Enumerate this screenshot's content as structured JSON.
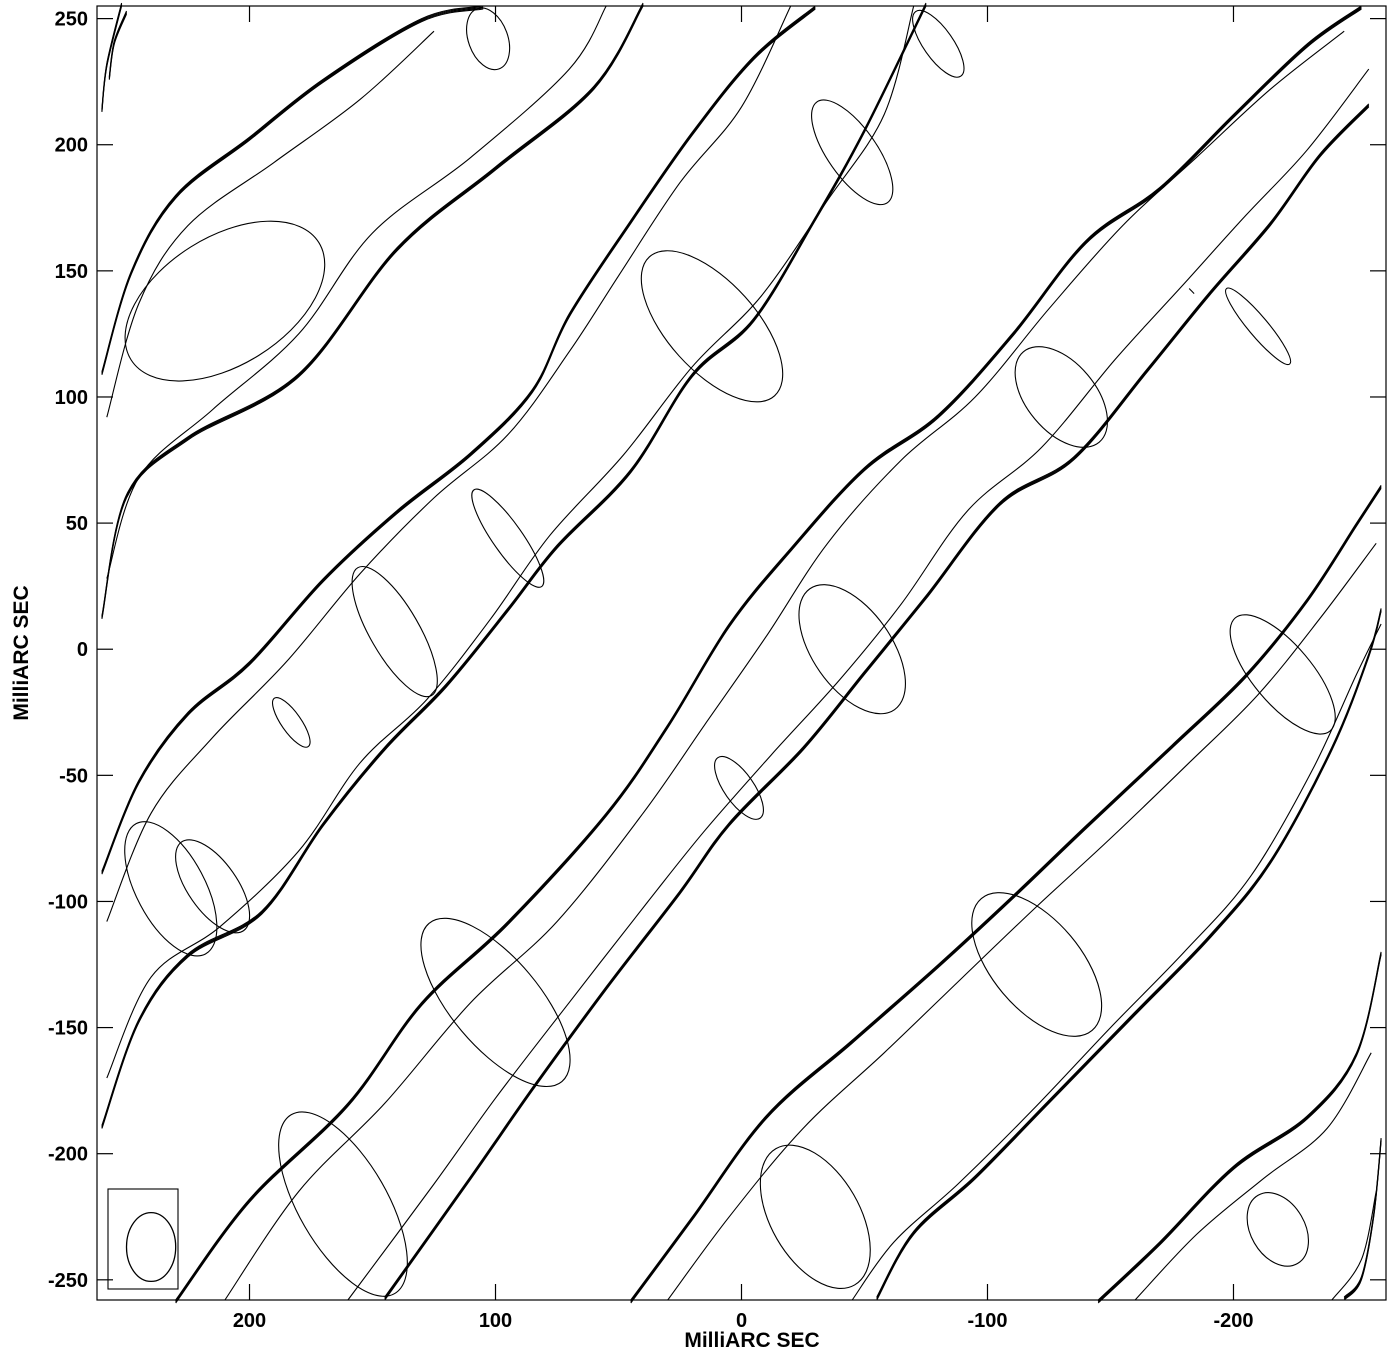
{
  "chart_data": {
    "type": "contour",
    "xlabel": "MilliARC SEC",
    "ylabel": "MilliARC SEC",
    "xlim": [
      262,
      -262
    ],
    "ylim": [
      -258,
      255
    ],
    "x_ticks": [
      {
        "value": 200,
        "label": "200"
      },
      {
        "value": 100,
        "label": "100"
      },
      {
        "value": 0,
        "label": "0"
      },
      {
        "value": -100,
        "label": "-100"
      },
      {
        "value": -200,
        "label": "-200"
      }
    ],
    "y_ticks": [
      {
        "value": 250,
        "label": "250"
      },
      {
        "value": 200,
        "label": "200"
      },
      {
        "value": 150,
        "label": "150"
      },
      {
        "value": 100,
        "label": "100"
      },
      {
        "value": 50,
        "label": "50"
      },
      {
        "value": 0,
        "label": "0"
      },
      {
        "value": -50,
        "label": "-50"
      },
      {
        "value": -100,
        "label": "-100"
      },
      {
        "value": -150,
        "label": "-150"
      },
      {
        "value": -200,
        "label": "-200"
      },
      {
        "value": -250,
        "label": "-250"
      }
    ],
    "fringes": [
      {
        "name": "fringe-1",
        "upper": [
          [
            257,
            227
          ],
          [
            255,
            241
          ],
          [
            250,
            253
          ]
        ],
        "lower": [
          [
            260,
            213
          ],
          [
            258,
            231
          ],
          [
            252,
            255
          ]
        ],
        "inner": [],
        "peaks": []
      },
      {
        "name": "fringe-2",
        "upper": [
          [
            260,
            110
          ],
          [
            248,
            150
          ],
          [
            230,
            180
          ],
          [
            200,
            203
          ],
          [
            170,
            226
          ],
          [
            130,
            250
          ],
          [
            105,
            255
          ]
        ],
        "lower": [
          [
            260,
            12
          ],
          [
            250,
            60
          ],
          [
            225,
            83
          ],
          [
            180,
            108
          ],
          [
            140,
            158
          ],
          [
            100,
            190
          ],
          [
            60,
            222
          ],
          [
            40,
            255
          ]
        ],
        "inner": [
          [
            [
              258,
              92
            ],
            [
              245,
              137
            ],
            [
              225,
              168
            ],
            [
              190,
              193
            ],
            [
              155,
              218
            ],
            [
              125,
              245
            ]
          ],
          [
            [
              258,
              28
            ],
            [
              245,
              68
            ],
            [
              215,
              95
            ],
            [
              180,
              125
            ],
            [
              150,
              165
            ],
            [
              110,
              195
            ],
            [
              70,
              230
            ],
            [
              55,
              255
            ]
          ]
        ],
        "peaks": [
          [
            210,
            138,
            26,
            45,
            -32
          ],
          [
            103,
            242,
            13,
            8,
            -20
          ]
        ]
      },
      {
        "name": "fringe-3",
        "upper": [
          [
            260,
            -88
          ],
          [
            245,
            -52
          ],
          [
            225,
            -25
          ],
          [
            200,
            -5
          ],
          [
            170,
            28
          ],
          [
            140,
            55
          ],
          [
            110,
            78
          ],
          [
            85,
            103
          ],
          [
            70,
            133
          ],
          [
            45,
            170
          ],
          [
            20,
            205
          ],
          [
            -5,
            235
          ],
          [
            -30,
            255
          ]
        ],
        "lower": [
          [
            260,
            -190
          ],
          [
            245,
            -148
          ],
          [
            225,
            -122
          ],
          [
            195,
            -105
          ],
          [
            170,
            -70
          ],
          [
            145,
            -40
          ],
          [
            120,
            -15
          ],
          [
            95,
            15
          ],
          [
            75,
            40
          ],
          [
            45,
            70
          ],
          [
            20,
            108
          ],
          [
            -5,
            130
          ],
          [
            -30,
            170
          ],
          [
            -50,
            205
          ],
          [
            -75,
            255
          ]
        ],
        "inner": [
          [
            [
              258,
              -108
            ],
            [
              240,
              -65
            ],
            [
              215,
              -35
            ],
            [
              185,
              -5
            ],
            [
              155,
              30
            ],
            [
              125,
              60
            ],
            [
              95,
              85
            ],
            [
              70,
              118
            ],
            [
              50,
              148
            ],
            [
              25,
              185
            ],
            [
              0,
              215
            ],
            [
              -20,
              255
            ]
          ],
          [
            [
              258,
              -170
            ],
            [
              240,
              -130
            ],
            [
              212,
              -110
            ],
            [
              180,
              -80
            ],
            [
              155,
              -45
            ],
            [
              128,
              -20
            ],
            [
              102,
              12
            ],
            [
              78,
              45
            ],
            [
              48,
              77
            ],
            [
              20,
              112
            ],
            [
              -8,
              140
            ],
            [
              -35,
              178
            ],
            [
              -58,
              212
            ],
            [
              -70,
              255
            ]
          ]
        ],
        "peaks": [
          [
            232,
            -95,
            30,
            14,
            -28
          ],
          [
            141,
            7,
            30,
            10,
            -30
          ],
          [
            95,
            44,
            24,
            6,
            -35
          ],
          [
            12,
            128,
            38,
            18,
            -42
          ],
          [
            -45,
            197,
            25,
            10,
            -35
          ],
          [
            -80,
            240,
            16,
            6,
            -35
          ],
          [
            183,
            -29,
            12,
            4,
            -35
          ],
          [
            215,
            -94,
            22,
            10,
            -35
          ]
        ]
      },
      {
        "name": "fringe-4",
        "upper": [
          [
            230,
            -258
          ],
          [
            200,
            -218
          ],
          [
            160,
            -180
          ],
          [
            130,
            -140
          ],
          [
            95,
            -108
          ],
          [
            55,
            -65
          ],
          [
            30,
            -30
          ],
          [
            5,
            10
          ],
          [
            -20,
            40
          ],
          [
            -50,
            72
          ],
          [
            -80,
            93
          ],
          [
            -110,
            125
          ],
          [
            -140,
            162
          ],
          [
            -170,
            183
          ],
          [
            -200,
            212
          ],
          [
            -230,
            240
          ],
          [
            -252,
            255
          ]
        ],
        "lower": [
          [
            145,
            -258
          ],
          [
            110,
            -210
          ],
          [
            85,
            -175
          ],
          [
            55,
            -135
          ],
          [
            25,
            -97
          ],
          [
            5,
            -70
          ],
          [
            -25,
            -40
          ],
          [
            -50,
            -10
          ],
          [
            -75,
            20
          ],
          [
            -105,
            57
          ],
          [
            -135,
            75
          ],
          [
            -165,
            110
          ],
          [
            -190,
            140
          ],
          [
            -215,
            168
          ],
          [
            -235,
            195
          ],
          [
            -255,
            215
          ]
        ],
        "inner": [
          [
            [
              210,
              -258
            ],
            [
              180,
              -215
            ],
            [
              145,
              -180
            ],
            [
              110,
              -140
            ],
            [
              75,
              -108
            ],
            [
              40,
              -65
            ],
            [
              15,
              -30
            ],
            [
              -10,
              5
            ],
            [
              -35,
              42
            ],
            [
              -65,
              75
            ],
            [
              -95,
              100
            ],
            [
              -125,
              135
            ],
            [
              -155,
              168
            ],
            [
              -185,
              195
            ],
            [
              -215,
              222
            ],
            [
              -245,
              245
            ]
          ],
          [
            [
              160,
              -258
            ],
            [
              125,
              -212
            ],
            [
              100,
              -178
            ],
            [
              70,
              -140
            ],
            [
              38,
              -100
            ],
            [
              15,
              -72
            ],
            [
              -12,
              -42
            ],
            [
              -40,
              -12
            ],
            [
              -65,
              18
            ],
            [
              -92,
              55
            ],
            [
              -122,
              80
            ],
            [
              -152,
              115
            ],
            [
              -180,
              145
            ],
            [
              -205,
              172
            ],
            [
              -230,
              198
            ],
            [
              -255,
              230
            ]
          ]
        ],
        "peaks": [
          [
            162,
            -220,
            42,
            18,
            -30
          ],
          [
            100,
            -140,
            42,
            18,
            -40
          ],
          [
            -45,
            0,
            30,
            16,
            -35
          ],
          [
            -130,
            100,
            24,
            14,
            -40
          ],
          [
            -210,
            128,
            20,
            4,
            -40
          ],
          [
            1,
            -55,
            15,
            6,
            -35
          ]
        ]
      },
      {
        "name": "fringe-5",
        "upper": [
          [
            45,
            -258
          ],
          [
            20,
            -225
          ],
          [
            -10,
            -185
          ],
          [
            -45,
            -155
          ],
          [
            -80,
            -125
          ],
          [
            -110,
            -98
          ],
          [
            -140,
            -70
          ],
          [
            -175,
            -38
          ],
          [
            -205,
            -10
          ],
          [
            -230,
            20
          ],
          [
            -250,
            50
          ],
          [
            -260,
            65
          ]
        ],
        "lower": [
          [
            -55,
            -258
          ],
          [
            -70,
            -232
          ],
          [
            -95,
            -210
          ],
          [
            -125,
            -180
          ],
          [
            -160,
            -145
          ],
          [
            -190,
            -115
          ],
          [
            -215,
            -85
          ],
          [
            -240,
            -40
          ],
          [
            -255,
            -3
          ],
          [
            -260,
            15
          ]
        ],
        "inner": [
          [
            [
              30,
              -258
            ],
            [
              5,
              -225
            ],
            [
              -25,
              -190
            ],
            [
              -58,
              -160
            ],
            [
              -90,
              -130
            ],
            [
              -120,
              -102
            ],
            [
              -150,
              -75
            ],
            [
              -182,
              -45
            ],
            [
              -210,
              -18
            ],
            [
              -235,
              12
            ],
            [
              -258,
              42
            ]
          ],
          [
            [
              -45,
              -258
            ],
            [
              -62,
              -235
            ],
            [
              -88,
              -212
            ],
            [
              -118,
              -183
            ],
            [
              -150,
              -150
            ],
            [
              -180,
              -120
            ],
            [
              -207,
              -90
            ],
            [
              -232,
              -48
            ],
            [
              -250,
              -10
            ],
            [
              -260,
              10
            ]
          ]
        ],
        "peaks": [
          [
            -30,
            -225,
            32,
            18,
            -30
          ],
          [
            -120,
            -125,
            35,
            18,
            -40
          ],
          [
            -220,
            -10,
            30,
            12,
            -40
          ]
        ]
      },
      {
        "name": "fringe-6",
        "upper": [
          [
            -145,
            -258
          ],
          [
            -170,
            -235
          ],
          [
            -200,
            -205
          ],
          [
            -230,
            -185
          ],
          [
            -250,
            -160
          ],
          [
            -260,
            -120
          ]
        ],
        "lower": [
          [
            -245,
            -258
          ],
          [
            -252,
            -250
          ],
          [
            -257,
            -225
          ],
          [
            -260,
            -195
          ]
        ],
        "inner": [
          [
            [
              -160,
              -258
            ],
            [
              -185,
              -232
            ],
            [
              -212,
              -210
            ],
            [
              -238,
              -190
            ],
            [
              -256,
              -160
            ]
          ],
          [
            [
              -240,
              -258
            ],
            [
              -252,
              -242
            ],
            [
              -258,
              -215
            ]
          ]
        ],
        "peaks": [
          [
            -218,
            -230,
            16,
            11,
            -30
          ]
        ]
      }
    ],
    "noise_blip": [
      [
        -182,
        143
      ],
      [
        -184,
        141
      ]
    ],
    "beam": {
      "x": 240,
      "y": -237,
      "major": 14,
      "minor": 10
    }
  }
}
